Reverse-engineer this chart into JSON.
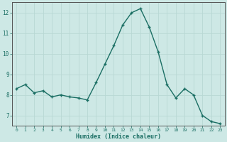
{
  "x": [
    0,
    1,
    2,
    3,
    4,
    5,
    6,
    7,
    8,
    9,
    10,
    11,
    12,
    13,
    14,
    15,
    16,
    17,
    18,
    19,
    20,
    21,
    22,
    23
  ],
  "y": [
    8.3,
    8.5,
    8.1,
    8.2,
    7.9,
    8.0,
    7.9,
    7.85,
    7.75,
    8.6,
    9.5,
    10.4,
    11.4,
    12.0,
    12.2,
    11.3,
    10.1,
    8.5,
    7.85,
    8.3,
    8.0,
    7.0,
    6.7,
    6.6
  ],
  "xlabel": "Humidex (Indice chaleur)",
  "ylabel": "",
  "title": "",
  "bg_color": "#cde8e5",
  "line_color": "#1a6e63",
  "marker_color": "#1a6e63",
  "grid_color": "#b8d8d4",
  "axis_color": "#555555",
  "tick_label_color": "#1a6e63",
  "xlabel_color": "#1a6e63",
  "ylim": [
    6.5,
    12.5
  ],
  "yticks": [
    7,
    8,
    9,
    10,
    11,
    12
  ],
  "xlim": [
    -0.5,
    23.5
  ],
  "xticks": [
    0,
    1,
    2,
    3,
    4,
    5,
    6,
    7,
    8,
    9,
    10,
    11,
    12,
    13,
    14,
    15,
    16,
    17,
    18,
    19,
    20,
    21,
    22,
    23
  ]
}
